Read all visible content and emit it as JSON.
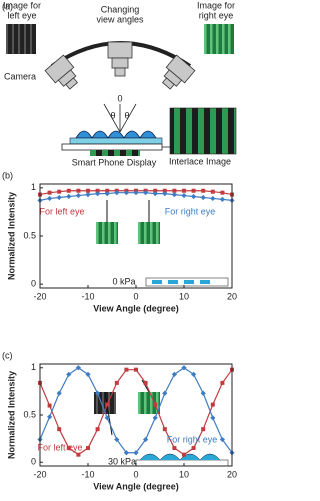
{
  "diagram": {
    "panel": "(a)",
    "left_image_label": [
      "Image for",
      "left eye"
    ],
    "view_label": [
      "Changing",
      "view angles"
    ],
    "right_image_label": [
      "Image for",
      "right eye"
    ],
    "camera_label": "Camera",
    "zero_label": "0",
    "theta_left": "θ",
    "theta_right": "θ",
    "display_label": "Smart Phone Display",
    "interlace_label": "Interlace Image"
  },
  "chart_data": [
    {
      "type": "line",
      "panel": "(b)",
      "xlabel": "View Angle (degree)",
      "ylabel": "Normalized Intensity",
      "annotation": "0 kPa",
      "x": [
        -20,
        -18,
        -16,
        -14,
        -12,
        -10,
        -8,
        -6,
        -4,
        -2,
        0,
        2,
        4,
        6,
        8,
        10,
        12,
        14,
        16,
        18,
        20
      ],
      "xlim": [
        -20,
        20
      ],
      "xticks": [
        -20,
        -10,
        0,
        10,
        20
      ],
      "ylim": [
        -0.04,
        1.04
      ],
      "yticks": [
        0,
        0.5,
        1
      ],
      "series": [
        {
          "name": "For left eye",
          "color": "#c23b3f",
          "values": [
            0.93,
            0.95,
            0.96,
            0.97,
            0.97,
            0.97,
            0.97,
            0.97,
            0.97,
            0.97,
            0.97,
            0.97,
            0.97,
            0.97,
            0.97,
            0.97,
            0.97,
            0.97,
            0.96,
            0.95,
            0.93
          ]
        },
        {
          "name": "For right eye",
          "color": "#3f7cc2",
          "values": [
            0.87,
            0.89,
            0.9,
            0.91,
            0.92,
            0.93,
            0.94,
            0.94,
            0.95,
            0.95,
            0.95,
            0.95,
            0.94,
            0.94,
            0.93,
            0.92,
            0.91,
            0.9,
            0.89,
            0.88,
            0.87
          ]
        }
      ]
    },
    {
      "type": "line",
      "panel": "(c)",
      "xlabel": "View Angle (degree)",
      "ylabel": "Normalized Intensity",
      "annotation": "30 kPa",
      "x": [
        -20,
        -18,
        -16,
        -14,
        -12,
        -10,
        -8,
        -6,
        -4,
        -2,
        0,
        2,
        4,
        6,
        8,
        10,
        12,
        14,
        16,
        18,
        20
      ],
      "xlim": [
        -20,
        20
      ],
      "xticks": [
        -20,
        -10,
        0,
        10,
        20
      ],
      "ylim": [
        -0.04,
        1.04
      ],
      "yticks": [
        0,
        0.5,
        1
      ],
      "series": [
        {
          "name": "For left eye",
          "color": "#c23b3f",
          "values": [
            0.84,
            0.6,
            0.35,
            0.15,
            0.08,
            0.15,
            0.35,
            0.61,
            0.84,
            0.98,
            0.98,
            0.84,
            0.61,
            0.35,
            0.15,
            0.08,
            0.15,
            0.35,
            0.61,
            0.84,
            0.98
          ]
        },
        {
          "name": "For right eye",
          "color": "#3f7cc2",
          "values": [
            0.24,
            0.48,
            0.73,
            0.93,
            1.0,
            0.93,
            0.73,
            0.47,
            0.24,
            0.1,
            0.1,
            0.24,
            0.47,
            0.73,
            0.93,
            1.0,
            0.93,
            0.73,
            0.47,
            0.24,
            0.1
          ]
        }
      ]
    }
  ]
}
